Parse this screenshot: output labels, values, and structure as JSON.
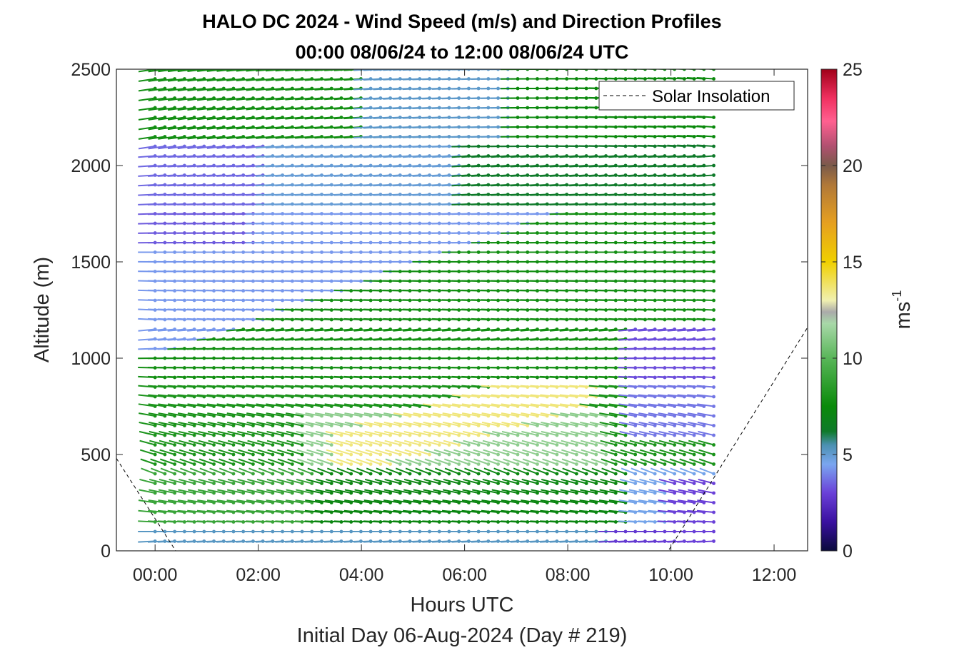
{
  "chart_data": {
    "type": "quiver",
    "title": "HALO DC 2024 - Wind Speed (m/s) and Direction Profiles",
    "subtitle": "00:00 08/06/24 to 12:00 08/06/24  UTC",
    "xlabel": "Hours UTC",
    "xlabel2": "Initial Day 06-Aug-2024 (Day # 219)",
    "ylabel": "Altitude (m)",
    "xlim_hours": [
      -0.75,
      12.65
    ],
    "ylim": [
      0,
      2500
    ],
    "x_ticks": [
      {
        "value": 0,
        "label": "00:00"
      },
      {
        "value": 2,
        "label": "02:00"
      },
      {
        "value": 4,
        "label": "04:00"
      },
      {
        "value": 6,
        "label": "06:00"
      },
      {
        "value": 8,
        "label": "08:00"
      },
      {
        "value": 10,
        "label": "10:00"
      },
      {
        "value": 12,
        "label": "12:00"
      }
    ],
    "y_ticks": [
      {
        "value": 0,
        "label": "0"
      },
      {
        "value": 500,
        "label": "500"
      },
      {
        "value": 1000,
        "label": "1000"
      },
      {
        "value": 1500,
        "label": "1500"
      },
      {
        "value": 2000,
        "label": "2000"
      },
      {
        "value": 2500,
        "label": "2500"
      }
    ],
    "colorbar": {
      "label": "ms",
      "label_exponent": "-1",
      "range": [
        0,
        25
      ],
      "ticks": [
        {
          "value": 0,
          "label": "0"
        },
        {
          "value": 5,
          "label": "5"
        },
        {
          "value": 10,
          "label": "10"
        },
        {
          "value": 15,
          "label": "15"
        },
        {
          "value": 20,
          "label": "20"
        },
        {
          "value": 25,
          "label": "25"
        }
      ],
      "stops": [
        [
          0,
          "#0a0a3c"
        ],
        [
          1.5,
          "#3a10a0"
        ],
        [
          3,
          "#6a40d8"
        ],
        [
          4.5,
          "#7aa6f0"
        ],
        [
          5.5,
          "#4a90b0"
        ],
        [
          6.2,
          "#0f7a2a"
        ],
        [
          7.5,
          "#0a8a0a"
        ],
        [
          10,
          "#59b659"
        ],
        [
          11.8,
          "#a8d8a8"
        ],
        [
          12.4,
          "#aaaaaa"
        ],
        [
          13,
          "#f0f0b0"
        ],
        [
          15,
          "#f0d000"
        ],
        [
          17,
          "#e6a020"
        ],
        [
          19,
          "#b07838"
        ],
        [
          20,
          "#7a5a4a"
        ],
        [
          21,
          "#b05070"
        ],
        [
          22.3,
          "#ff6090"
        ],
        [
          23.5,
          "#f03060"
        ],
        [
          25,
          "#a00018"
        ]
      ]
    },
    "legend": {
      "entries": [
        "Solar Insolation"
      ],
      "position": "top-right"
    },
    "series": [
      {
        "name": "Solar Insolation",
        "style": "dashed",
        "points_hours_alt": [
          [
            -0.75,
            480
          ],
          [
            0.4,
            0
          ],
          [
            9.95,
            0
          ],
          [
            12.65,
            1160
          ]
        ]
      },
      {
        "name": "wind",
        "profile_times_hours": [
          0.0,
          0.19,
          0.38,
          0.57,
          0.76,
          0.95,
          1.14,
          1.33,
          1.52,
          1.71,
          1.9,
          2.09,
          2.28,
          2.47,
          2.66,
          2.85,
          3.04,
          3.23,
          3.42,
          3.61,
          3.8,
          3.99,
          4.18,
          4.37,
          4.56,
          4.75,
          4.94,
          5.13,
          5.32,
          5.51,
          5.7,
          5.89,
          6.08,
          6.27,
          6.46,
          6.65,
          6.84,
          7.03,
          7.22,
          7.41,
          7.6,
          7.79,
          7.98,
          8.17,
          8.36,
          8.55,
          8.74,
          8.93,
          9.12,
          9.31,
          9.5,
          9.69,
          9.88,
          10.07,
          10.26,
          10.45,
          10.64,
          10.83
        ],
        "altitude_step_m": 50,
        "max_altitude_m": 2500
      }
    ]
  }
}
